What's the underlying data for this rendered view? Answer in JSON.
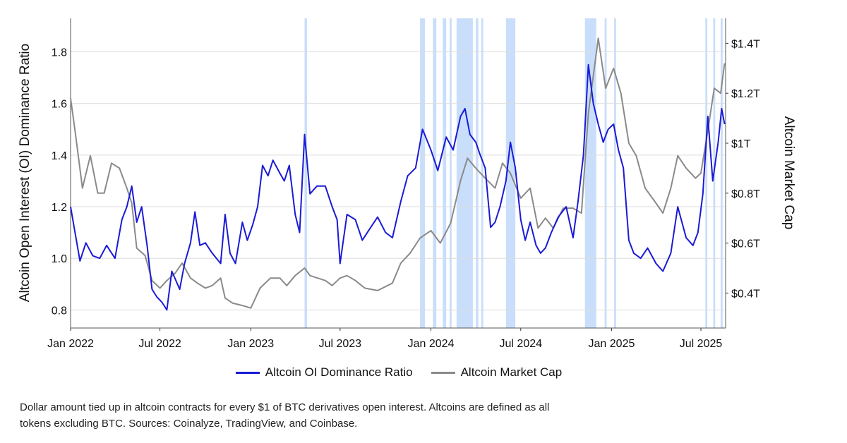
{
  "chart_data": {
    "type": "line",
    "title": "",
    "xlabel": "",
    "ylabel": "Altcoin Open Interest (OI) Dominance Ratio",
    "y2label": "Altcoin Market Cap",
    "x_ticks": [
      "Jan 2022",
      "Jul 2022",
      "Jan 2023",
      "Jul 2023",
      "Jan 2024",
      "Jul 2024",
      "Jan 2025",
      "Jul 2025"
    ],
    "x_range": [
      "2022-01-01",
      "2025-08-20"
    ],
    "y_ticks": [
      "0.8",
      "1.0",
      "1.2",
      "1.4",
      "1.6",
      "1.8"
    ],
    "ylim": [
      0.73,
      1.93
    ],
    "y2_ticks": [
      "$0.4T",
      "$0.6T",
      "$0.8T",
      "$1T",
      "$1.2T",
      "$1.4T"
    ],
    "y2lim": [
      0.26,
      1.5
    ],
    "grid": true,
    "legend_position": "bottom",
    "highlight_periods": [
      [
        "2023-04-20",
        "2023-04-25"
      ],
      [
        "2023-12-10",
        "2023-12-20"
      ],
      [
        "2024-01-05",
        "2024-01-12"
      ],
      [
        "2024-01-25",
        "2024-02-01"
      ],
      [
        "2024-02-08",
        "2024-02-12"
      ],
      [
        "2024-02-22",
        "2024-03-26"
      ],
      [
        "2024-04-01",
        "2024-04-06"
      ],
      [
        "2024-04-12",
        "2024-04-16"
      ],
      [
        "2024-06-01",
        "2024-06-20"
      ],
      [
        "2024-11-08",
        "2024-12-01"
      ],
      [
        "2024-12-18",
        "2024-12-22"
      ],
      [
        "2025-01-06",
        "2025-01-10"
      ],
      [
        "2025-07-10",
        "2025-07-14"
      ],
      [
        "2025-07-26",
        "2025-07-30"
      ],
      [
        "2025-08-10",
        "2025-08-14"
      ]
    ],
    "series": [
      {
        "name": "Altcoin OI Dominance Ratio",
        "color": "#1a1ad6",
        "axis": "left",
        "points": [
          [
            "2022-01-01",
            1.2
          ],
          [
            "2022-01-10",
            1.1
          ],
          [
            "2022-01-20",
            0.99
          ],
          [
            "2022-02-01",
            1.06
          ],
          [
            "2022-02-15",
            1.01
          ],
          [
            "2022-03-01",
            1.0
          ],
          [
            "2022-03-15",
            1.05
          ],
          [
            "2022-04-01",
            1.0
          ],
          [
            "2022-04-15",
            1.15
          ],
          [
            "2022-04-25",
            1.2
          ],
          [
            "2022-05-05",
            1.28
          ],
          [
            "2022-05-15",
            1.14
          ],
          [
            "2022-05-25",
            1.2
          ],
          [
            "2022-06-05",
            1.05
          ],
          [
            "2022-06-15",
            0.88
          ],
          [
            "2022-06-25",
            0.85
          ],
          [
            "2022-07-05",
            0.83
          ],
          [
            "2022-07-15",
            0.8
          ],
          [
            "2022-07-25",
            0.95
          ],
          [
            "2022-08-01",
            0.92
          ],
          [
            "2022-08-10",
            0.88
          ],
          [
            "2022-08-20",
            0.98
          ],
          [
            "2022-09-01",
            1.06
          ],
          [
            "2022-09-10",
            1.18
          ],
          [
            "2022-09-20",
            1.05
          ],
          [
            "2022-10-01",
            1.06
          ],
          [
            "2022-10-15",
            1.02
          ],
          [
            "2022-11-01",
            0.98
          ],
          [
            "2022-11-10",
            1.17
          ],
          [
            "2022-11-20",
            1.02
          ],
          [
            "2022-12-01",
            0.98
          ],
          [
            "2022-12-15",
            1.14
          ],
          [
            "2022-12-25",
            1.07
          ],
          [
            "2023-01-05",
            1.13
          ],
          [
            "2023-01-15",
            1.2
          ],
          [
            "2023-01-25",
            1.36
          ],
          [
            "2023-02-05",
            1.32
          ],
          [
            "2023-02-15",
            1.38
          ],
          [
            "2023-03-01",
            1.33
          ],
          [
            "2023-03-10",
            1.3
          ],
          [
            "2023-03-20",
            1.36
          ],
          [
            "2023-04-01",
            1.17
          ],
          [
            "2023-04-10",
            1.1
          ],
          [
            "2023-04-20",
            1.48
          ],
          [
            "2023-05-01",
            1.25
          ],
          [
            "2023-05-15",
            1.28
          ],
          [
            "2023-06-01",
            1.28
          ],
          [
            "2023-06-15",
            1.2
          ],
          [
            "2023-06-25",
            1.15
          ],
          [
            "2023-07-01",
            0.98
          ],
          [
            "2023-07-15",
            1.17
          ],
          [
            "2023-08-01",
            1.15
          ],
          [
            "2023-08-15",
            1.07
          ],
          [
            "2023-09-01",
            1.12
          ],
          [
            "2023-09-15",
            1.16
          ],
          [
            "2023-10-01",
            1.1
          ],
          [
            "2023-10-15",
            1.08
          ],
          [
            "2023-11-01",
            1.22
          ],
          [
            "2023-11-15",
            1.32
          ],
          [
            "2023-12-01",
            1.35
          ],
          [
            "2023-12-15",
            1.5
          ],
          [
            "2024-01-01",
            1.42
          ],
          [
            "2024-01-15",
            1.34
          ],
          [
            "2024-02-01",
            1.47
          ],
          [
            "2024-02-15",
            1.42
          ],
          [
            "2024-03-01",
            1.55
          ],
          [
            "2024-03-10",
            1.58
          ],
          [
            "2024-03-20",
            1.48
          ],
          [
            "2024-04-01",
            1.45
          ],
          [
            "2024-04-10",
            1.4
          ],
          [
            "2024-04-20",
            1.35
          ],
          [
            "2024-05-01",
            1.12
          ],
          [
            "2024-05-10",
            1.14
          ],
          [
            "2024-05-20",
            1.2
          ],
          [
            "2024-06-01",
            1.3
          ],
          [
            "2024-06-10",
            1.45
          ],
          [
            "2024-06-20",
            1.35
          ],
          [
            "2024-07-01",
            1.15
          ],
          [
            "2024-07-10",
            1.07
          ],
          [
            "2024-07-20",
            1.14
          ],
          [
            "2024-08-01",
            1.05
          ],
          [
            "2024-08-10",
            1.02
          ],
          [
            "2024-08-20",
            1.04
          ],
          [
            "2024-09-01",
            1.1
          ],
          [
            "2024-09-15",
            1.16
          ],
          [
            "2024-10-01",
            1.2
          ],
          [
            "2024-10-15",
            1.08
          ],
          [
            "2024-10-25",
            1.22
          ],
          [
            "2024-11-05",
            1.4
          ],
          [
            "2024-11-15",
            1.75
          ],
          [
            "2024-11-25",
            1.6
          ],
          [
            "2024-12-05",
            1.52
          ],
          [
            "2024-12-15",
            1.45
          ],
          [
            "2024-12-25",
            1.5
          ],
          [
            "2025-01-05",
            1.52
          ],
          [
            "2025-01-15",
            1.42
          ],
          [
            "2025-01-25",
            1.35
          ],
          [
            "2025-02-05",
            1.07
          ],
          [
            "2025-02-15",
            1.02
          ],
          [
            "2025-03-01",
            1.0
          ],
          [
            "2025-03-15",
            1.04
          ],
          [
            "2025-04-01",
            0.98
          ],
          [
            "2025-04-15",
            0.95
          ],
          [
            "2025-05-01",
            1.02
          ],
          [
            "2025-05-15",
            1.2
          ],
          [
            "2025-06-01",
            1.08
          ],
          [
            "2025-06-15",
            1.05
          ],
          [
            "2025-06-25",
            1.1
          ],
          [
            "2025-07-05",
            1.25
          ],
          [
            "2025-07-15",
            1.55
          ],
          [
            "2025-07-25",
            1.3
          ],
          [
            "2025-08-05",
            1.45
          ],
          [
            "2025-08-12",
            1.58
          ],
          [
            "2025-08-18",
            1.52
          ]
        ]
      },
      {
        "name": "Altcoin Market Cap",
        "color": "#8a8a8a",
        "axis": "right",
        "points": [
          [
            "2022-01-01",
            1.18
          ],
          [
            "2022-01-10",
            1.05
          ],
          [
            "2022-01-25",
            0.82
          ],
          [
            "2022-02-10",
            0.95
          ],
          [
            "2022-02-25",
            0.8
          ],
          [
            "2022-03-10",
            0.8
          ],
          [
            "2022-03-25",
            0.92
          ],
          [
            "2022-04-10",
            0.9
          ],
          [
            "2022-04-25",
            0.82
          ],
          [
            "2022-05-05",
            0.76
          ],
          [
            "2022-05-15",
            0.58
          ],
          [
            "2022-06-01",
            0.55
          ],
          [
            "2022-06-15",
            0.45
          ],
          [
            "2022-07-01",
            0.42
          ],
          [
            "2022-07-15",
            0.45
          ],
          [
            "2022-08-01",
            0.48
          ],
          [
            "2022-08-15",
            0.52
          ],
          [
            "2022-09-01",
            0.46
          ],
          [
            "2022-09-15",
            0.44
          ],
          [
            "2022-10-01",
            0.42
          ],
          [
            "2022-10-15",
            0.43
          ],
          [
            "2022-11-01",
            0.46
          ],
          [
            "2022-11-10",
            0.38
          ],
          [
            "2022-11-25",
            0.36
          ],
          [
            "2022-12-15",
            0.35
          ],
          [
            "2023-01-01",
            0.34
          ],
          [
            "2023-01-20",
            0.42
          ],
          [
            "2023-02-10",
            0.46
          ],
          [
            "2023-03-01",
            0.46
          ],
          [
            "2023-03-15",
            0.43
          ],
          [
            "2023-04-01",
            0.47
          ],
          [
            "2023-04-20",
            0.5
          ],
          [
            "2023-05-01",
            0.47
          ],
          [
            "2023-06-01",
            0.45
          ],
          [
            "2023-06-15",
            0.43
          ],
          [
            "2023-07-01",
            0.46
          ],
          [
            "2023-07-15",
            0.47
          ],
          [
            "2023-08-01",
            0.45
          ],
          [
            "2023-08-20",
            0.42
          ],
          [
            "2023-09-15",
            0.41
          ],
          [
            "2023-10-15",
            0.44
          ],
          [
            "2023-11-01",
            0.52
          ],
          [
            "2023-11-20",
            0.56
          ],
          [
            "2023-12-10",
            0.62
          ],
          [
            "2024-01-01",
            0.65
          ],
          [
            "2024-01-20",
            0.6
          ],
          [
            "2024-02-10",
            0.68
          ],
          [
            "2024-03-01",
            0.85
          ],
          [
            "2024-03-15",
            0.94
          ],
          [
            "2024-04-01",
            0.9
          ],
          [
            "2024-04-20",
            0.86
          ],
          [
            "2024-05-10",
            0.82
          ],
          [
            "2024-05-25",
            0.92
          ],
          [
            "2024-06-10",
            0.88
          ],
          [
            "2024-07-01",
            0.78
          ],
          [
            "2024-07-20",
            0.82
          ],
          [
            "2024-08-05",
            0.66
          ],
          [
            "2024-08-20",
            0.7
          ],
          [
            "2024-09-05",
            0.66
          ],
          [
            "2024-09-25",
            0.74
          ],
          [
            "2024-10-15",
            0.74
          ],
          [
            "2024-11-01",
            0.72
          ],
          [
            "2024-11-15",
            1.12
          ],
          [
            "2024-12-05",
            1.42
          ],
          [
            "2024-12-20",
            1.22
          ],
          [
            "2025-01-05",
            1.3
          ],
          [
            "2025-01-20",
            1.2
          ],
          [
            "2025-02-05",
            1.0
          ],
          [
            "2025-02-20",
            0.95
          ],
          [
            "2025-03-10",
            0.82
          ],
          [
            "2025-04-01",
            0.76
          ],
          [
            "2025-04-15",
            0.72
          ],
          [
            "2025-05-01",
            0.82
          ],
          [
            "2025-05-15",
            0.95
          ],
          [
            "2025-06-01",
            0.9
          ],
          [
            "2025-06-20",
            0.86
          ],
          [
            "2025-07-01",
            0.88
          ],
          [
            "2025-07-15",
            1.05
          ],
          [
            "2025-07-28",
            1.22
          ],
          [
            "2025-08-10",
            1.2
          ],
          [
            "2025-08-18",
            1.32
          ]
        ]
      }
    ]
  },
  "legend": [
    {
      "label": "Altcoin OI Dominance Ratio",
      "color": "#1a1ad6"
    },
    {
      "label": "Altcoin Market Cap",
      "color": "#8a8a8a"
    }
  ],
  "caption_line1": "Dollar amount tied up in altcoin contracts for every $1 of BTC derivatives open interest. Altcoins are defined as all",
  "caption_line2": "tokens excluding BTC. Sources: Coinalyze, TradingView, and Coinbase."
}
